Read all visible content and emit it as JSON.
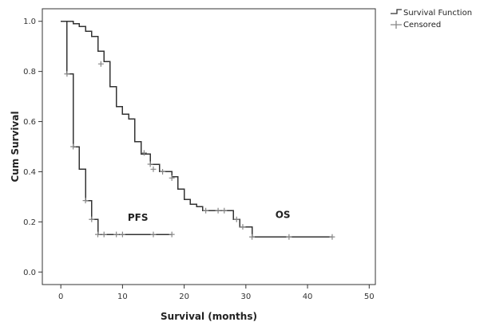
{
  "chart_data": {
    "type": "line",
    "subtype": "kaplan-meier step",
    "title": "",
    "xlabel": "Survival (months)",
    "ylabel": "Cum Survival",
    "xlim": [
      -3,
      51
    ],
    "ylim": [
      -0.05,
      1.05
    ],
    "xticks": [
      "0",
      "10",
      "20",
      "30",
      "40",
      "50"
    ],
    "yticks": [
      "0.0",
      "0.2",
      "0.4",
      "0.6",
      "0.8",
      "1.0"
    ],
    "legend_position": "top-right",
    "legend": [
      "Survival Function",
      "Censored"
    ],
    "grid": false,
    "colors": {
      "line": "#333333",
      "censor": "#888888",
      "frame": "#333333"
    },
    "series": [
      {
        "name": "OS",
        "steps": [
          [
            0,
            1.0
          ],
          [
            2,
            0.99
          ],
          [
            3,
            0.98
          ],
          [
            4,
            0.96
          ],
          [
            5,
            0.94
          ],
          [
            6,
            0.88
          ],
          [
            7,
            0.84
          ],
          [
            8,
            0.74
          ],
          [
            9,
            0.66
          ],
          [
            10,
            0.63
          ],
          [
            11,
            0.61
          ],
          [
            12,
            0.52
          ],
          [
            13,
            0.47
          ],
          [
            14.5,
            0.43
          ],
          [
            16,
            0.4
          ],
          [
            18,
            0.38
          ],
          [
            19,
            0.33
          ],
          [
            20,
            0.29
          ],
          [
            21,
            0.27
          ],
          [
            22,
            0.26
          ],
          [
            23,
            0.245
          ],
          [
            28,
            0.21
          ],
          [
            29,
            0.18
          ],
          [
            31,
            0.14
          ],
          [
            44,
            0.14
          ]
        ],
        "censored": [
          [
            6.5,
            0.83
          ],
          [
            13.5,
            0.475
          ],
          [
            14.5,
            0.43
          ],
          [
            15,
            0.41
          ],
          [
            16.5,
            0.4
          ],
          [
            18,
            0.375
          ],
          [
            23.5,
            0.245
          ],
          [
            25.5,
            0.245
          ],
          [
            26.5,
            0.245
          ],
          [
            28.5,
            0.21
          ],
          [
            29.5,
            0.18
          ],
          [
            31,
            0.14
          ],
          [
            37,
            0.14
          ],
          [
            44,
            0.14
          ]
        ]
      },
      {
        "name": "PFS",
        "steps": [
          [
            0,
            1.0
          ],
          [
            1,
            0.79
          ],
          [
            2,
            0.5
          ],
          [
            3,
            0.41
          ],
          [
            4,
            0.285
          ],
          [
            5,
            0.21
          ],
          [
            6,
            0.15
          ],
          [
            18,
            0.15
          ]
        ],
        "censored": [
          [
            1,
            0.79
          ],
          [
            2,
            0.5
          ],
          [
            4,
            0.285
          ],
          [
            5,
            0.21
          ],
          [
            6,
            0.15
          ],
          [
            7,
            0.15
          ],
          [
            9,
            0.15
          ],
          [
            10,
            0.15
          ],
          [
            15,
            0.15
          ],
          [
            18,
            0.15
          ]
        ]
      }
    ],
    "annotations": [
      {
        "text": "PFS",
        "x": 12.5,
        "y": 0.205
      },
      {
        "text": "OS",
        "x": 36,
        "y": 0.215
      }
    ]
  }
}
